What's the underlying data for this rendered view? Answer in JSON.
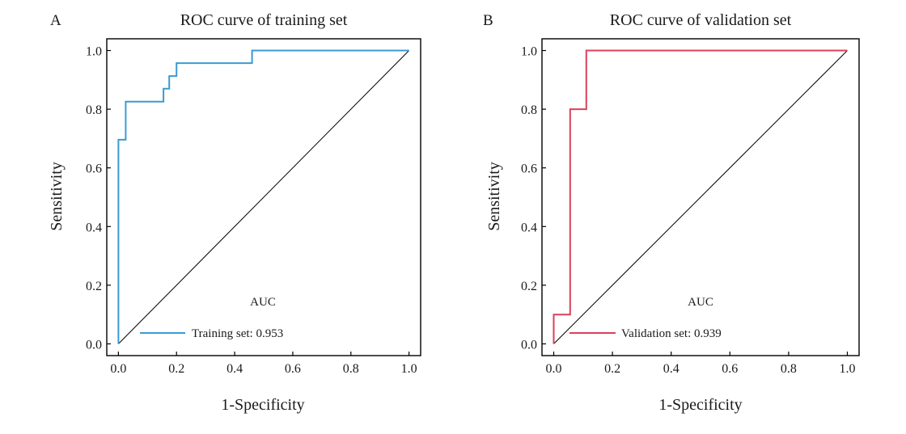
{
  "chart_data": [
    {
      "type": "line",
      "panel_label": "A",
      "title": "ROC curve of training set",
      "xlabel": "1-Specificity",
      "ylabel": "Sensitivity",
      "xlim": [
        -0.04,
        1.04
      ],
      "ylim": [
        -0.04,
        1.04
      ],
      "xticks": [
        "0.0",
        "0.2",
        "0.4",
        "0.6",
        "0.8",
        "1.0"
      ],
      "yticks": [
        "0.0",
        "0.2",
        "0.4",
        "0.6",
        "0.8",
        "1.0"
      ],
      "grid": false,
      "legend": {
        "title": "AUC",
        "position": "bottom-right"
      },
      "reference_line": {
        "x": [
          0,
          1
        ],
        "y": [
          0,
          1
        ],
        "color": "#000000"
      },
      "series": [
        {
          "name": "Training set: 0.953",
          "color": "#3b9ad2",
          "x": [
            0.0,
            0.0,
            0.025,
            0.025,
            0.155,
            0.155,
            0.175,
            0.175,
            0.2,
            0.2,
            0.46,
            0.46,
            1.0
          ],
          "y": [
            0.0,
            0.696,
            0.696,
            0.826,
            0.826,
            0.87,
            0.87,
            0.913,
            0.913,
            0.957,
            0.957,
            1.0,
            1.0
          ]
        }
      ]
    },
    {
      "type": "line",
      "panel_label": "B",
      "title": "ROC curve of validation set",
      "xlabel": "1-Specificity",
      "ylabel": "Sensitivity",
      "xlim": [
        -0.04,
        1.04
      ],
      "ylim": [
        -0.04,
        1.04
      ],
      "xticks": [
        "0.0",
        "0.2",
        "0.4",
        "0.6",
        "0.8",
        "1.0"
      ],
      "yticks": [
        "0.0",
        "0.2",
        "0.4",
        "0.6",
        "0.8",
        "1.0"
      ],
      "grid": false,
      "legend": {
        "title": "AUC",
        "position": "bottom-right"
      },
      "reference_line": {
        "x": [
          0,
          1
        ],
        "y": [
          0,
          1
        ],
        "color": "#000000"
      },
      "series": [
        {
          "name": "Validation set: 0.939",
          "color": "#d9415a",
          "x": [
            0.0,
            0.0,
            0.056,
            0.056,
            0.111,
            0.111,
            1.0
          ],
          "y": [
            0.0,
            0.1,
            0.1,
            0.8,
            0.8,
            1.0,
            1.0
          ]
        }
      ]
    }
  ]
}
